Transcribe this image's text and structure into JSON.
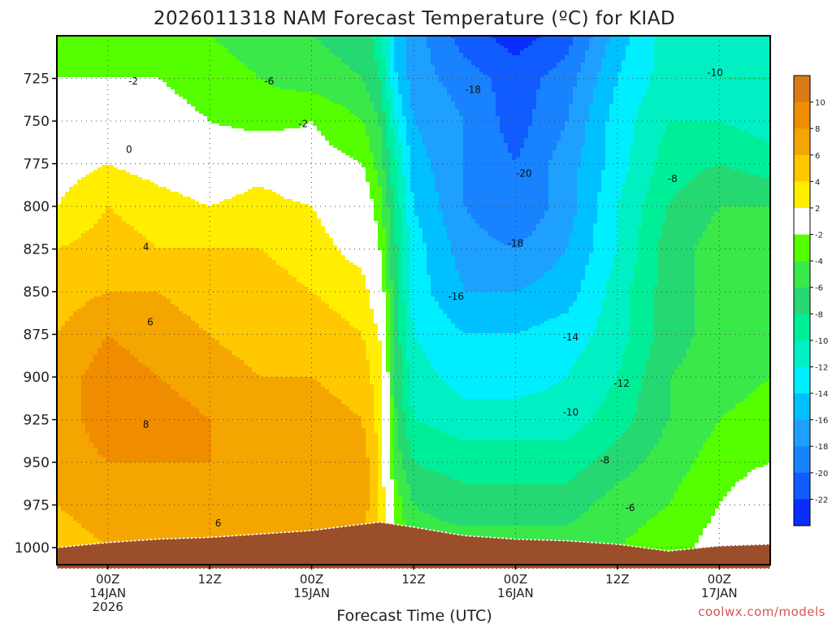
{
  "chart_data": {
    "type": "heatmap",
    "title": "2026011318 NAM Forecast Temperature (ºC) for KIAD",
    "xlabel": "Forecast Time (UTC)",
    "ylabel": "",
    "credit": "coolwx.com/models",
    "y_axis": {
      "reversed": true,
      "range": [
        1010,
        700
      ],
      "ticks": [
        725,
        750,
        775,
        800,
        825,
        850,
        875,
        900,
        925,
        950,
        975,
        1000
      ]
    },
    "x_axis": {
      "range_hours": [
        -6,
        78
      ],
      "ticks": [
        {
          "hour": 0,
          "lines": [
            "00Z",
            "14JAN",
            "2026"
          ]
        },
        {
          "hour": 12,
          "lines": [
            "12Z"
          ]
        },
        {
          "hour": 24,
          "lines": [
            "00Z",
            "15JAN"
          ]
        },
        {
          "hour": 36,
          "lines": [
            "12Z"
          ]
        },
        {
          "hour": 48,
          "lines": [
            "00Z",
            "16JAN"
          ]
        },
        {
          "hour": 60,
          "lines": [
            "12Z"
          ]
        },
        {
          "hour": 72,
          "lines": [
            "00Z",
            "17JAN"
          ]
        }
      ]
    },
    "grid": true,
    "colorbar": {
      "position": "right",
      "bands": [
        {
          "range": [
            10,
            12
          ],
          "color": "#d97a18"
        },
        {
          "range": [
            8,
            10
          ],
          "color": "#f08c00"
        },
        {
          "range": [
            6,
            8
          ],
          "color": "#f5a500"
        },
        {
          "range": [
            4,
            6
          ],
          "color": "#ffc800"
        },
        {
          "range": [
            2,
            4
          ],
          "color": "#ffee00"
        },
        {
          "range": [
            -2,
            2
          ],
          "color": "#ffffff"
        },
        {
          "range": [
            -4,
            -2
          ],
          "color": "#55ff00"
        },
        {
          "range": [
            -6,
            -4
          ],
          "color": "#3ae84a"
        },
        {
          "range": [
            -8,
            -6
          ],
          "color": "#26d871"
        },
        {
          "range": [
            -10,
            -8
          ],
          "color": "#00ee98"
        },
        {
          "range": [
            -12,
            -10
          ],
          "color": "#00f0c4"
        },
        {
          "range": [
            -14,
            -12
          ],
          "color": "#00eeff"
        },
        {
          "range": [
            -16,
            -14
          ],
          "color": "#00c0ff"
        },
        {
          "range": [
            -18,
            -16
          ],
          "color": "#1ea0ff"
        },
        {
          "range": [
            -20,
            -18
          ],
          "color": "#1882ff"
        },
        {
          "range": [
            -22,
            -20
          ],
          "color": "#105cff"
        },
        {
          "range": [
            -24,
            -22
          ],
          "color": "#0a2eff"
        }
      ],
      "tick_labels": [
        "10",
        "8",
        "6",
        "4",
        "2",
        "-2",
        "-4",
        "-6",
        "-8",
        "-10",
        "-12",
        "-14",
        "-16",
        "-18",
        "-20",
        "-22"
      ]
    },
    "temperature_field": {
      "hours": [
        -6,
        0,
        6,
        12,
        18,
        24,
        30,
        32,
        34,
        36,
        42,
        48,
        54,
        60,
        66,
        72,
        78
      ],
      "pressures": [
        700,
        725,
        750,
        775,
        800,
        825,
        850,
        875,
        900,
        925,
        950,
        975,
        1000
      ],
      "values_C": [
        [
          -3,
          -4,
          -4,
          -4,
          -5,
          -6,
          -7,
          -9,
          -15,
          -17,
          -21,
          -23,
          -21,
          -15,
          -11,
          -11,
          -11
        ],
        [
          -2,
          -2,
          -2,
          -3,
          -4,
          -5,
          -6,
          -8,
          -14,
          -17,
          -19,
          -21,
          -19,
          -14,
          -11,
          -10,
          -10
        ],
        [
          0,
          -1,
          -1,
          -2,
          -3,
          -2,
          -4,
          -6,
          -12,
          -16,
          -18,
          -21,
          -18,
          -13,
          -10,
          -10,
          -11
        ],
        [
          1,
          2,
          1,
          0,
          1,
          -1,
          -2,
          -5,
          -10,
          -15,
          -18,
          -20,
          -17,
          -13,
          -9,
          -8,
          -9
        ],
        [
          2,
          4,
          3,
          2,
          3,
          2,
          0,
          -3,
          -9,
          -14,
          -18,
          -20,
          -17,
          -12,
          -8,
          -6,
          -6
        ],
        [
          4,
          5,
          4,
          4,
          4,
          3,
          1,
          -2,
          -8,
          -13,
          -17,
          -18,
          -16,
          -12,
          -7,
          -5,
          -5
        ],
        [
          5,
          6,
          6,
          5,
          5,
          4,
          3,
          0,
          -8,
          -13,
          -16,
          -16,
          -15,
          -11,
          -7,
          -5,
          -5
        ],
        [
          6,
          8,
          7,
          6,
          5,
          5,
          4,
          2,
          -7,
          -12,
          -14,
          -14,
          -13,
          -11,
          -7,
          -5,
          -5
        ],
        [
          7,
          9,
          8,
          7,
          6,
          6,
          5,
          3,
          -7,
          -11,
          -13,
          -13,
          -12,
          -10,
          -6,
          -5,
          -4
        ],
        [
          7,
          9,
          9,
          8,
          7,
          7,
          6,
          3,
          -6,
          -10,
          -11,
          -11,
          -11,
          -9,
          -6,
          -4,
          -3
        ],
        [
          7,
          8,
          8,
          8,
          7,
          7,
          7,
          4,
          -5,
          -8,
          -9,
          -9,
          -9,
          -7,
          -5,
          -3,
          -2
        ],
        [
          6,
          7,
          7,
          7,
          6,
          7,
          7,
          4,
          -3,
          -6,
          -7,
          -7,
          -7,
          -5,
          -4,
          -2,
          0
        ],
        [
          5,
          6,
          6,
          6,
          6,
          6,
          6,
          4,
          -2,
          -5,
          -5,
          -5,
          -5,
          -4,
          -3,
          -1,
          1
        ]
      ]
    },
    "ground_surface": {
      "color": "#9a4f2a",
      "points": [
        [
          -6,
          1000
        ],
        [
          0,
          997
        ],
        [
          6,
          995
        ],
        [
          12,
          994
        ],
        [
          24,
          990
        ],
        [
          32,
          985
        ],
        [
          36,
          988
        ],
        [
          42,
          993
        ],
        [
          48,
          995
        ],
        [
          54,
          996
        ],
        [
          60,
          998
        ],
        [
          66,
          1002
        ],
        [
          72,
          999
        ],
        [
          78,
          998
        ]
      ]
    },
    "contour_labels": [
      {
        "text": "-2",
        "hour": 3,
        "pressure": 727
      },
      {
        "text": "-6",
        "hour": 19,
        "pressure": 727
      },
      {
        "text": "-2",
        "hour": 23,
        "pressure": 752
      },
      {
        "text": "0",
        "hour": 2.5,
        "pressure": 767
      },
      {
        "text": "4",
        "hour": 4.5,
        "pressure": 824
      },
      {
        "text": "6",
        "hour": 5,
        "pressure": 868
      },
      {
        "text": "8",
        "hour": 4.5,
        "pressure": 928
      },
      {
        "text": "6",
        "hour": 13,
        "pressure": 986
      },
      {
        "text": "-18",
        "hour": 43,
        "pressure": 732
      },
      {
        "text": "-20",
        "hour": 49,
        "pressure": 781
      },
      {
        "text": "-18",
        "hour": 48,
        "pressure": 822
      },
      {
        "text": "-16",
        "hour": 41,
        "pressure": 853
      },
      {
        "text": "-14",
        "hour": 54.5,
        "pressure": 877
      },
      {
        "text": "-12",
        "hour": 60.5,
        "pressure": 904
      },
      {
        "text": "-10",
        "hour": 54.5,
        "pressure": 921
      },
      {
        "text": "-8",
        "hour": 58.5,
        "pressure": 949
      },
      {
        "text": "-6",
        "hour": 61.5,
        "pressure": 977
      },
      {
        "text": "-10",
        "hour": 71.5,
        "pressure": 722
      },
      {
        "text": "-8",
        "hour": 66.5,
        "pressure": 784
      }
    ]
  }
}
